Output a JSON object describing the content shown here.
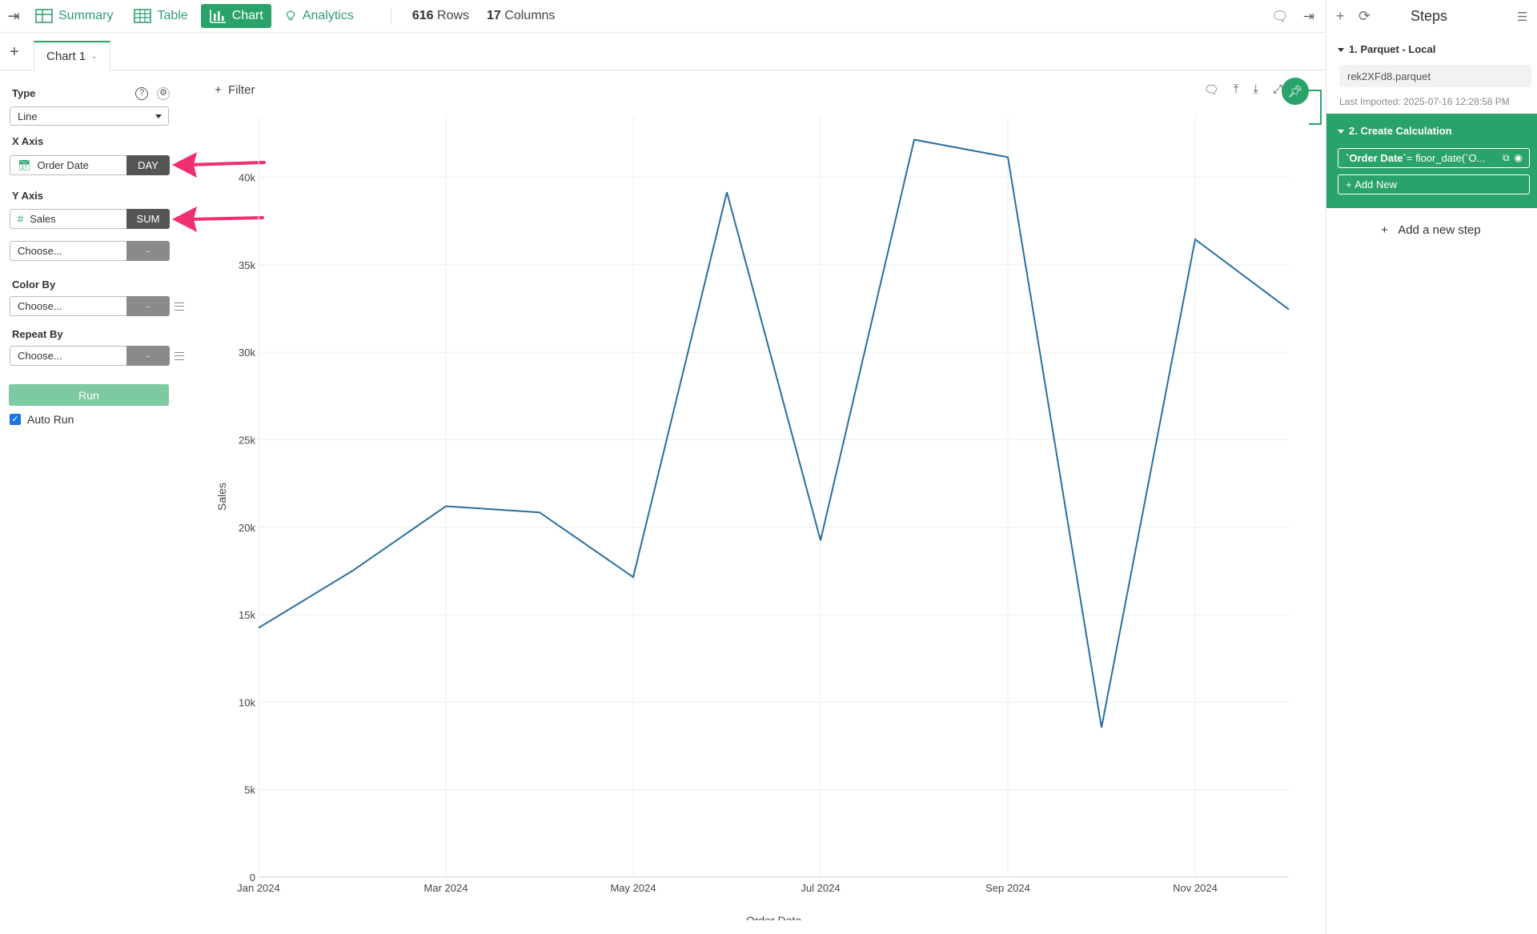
{
  "toolbar": {
    "tabs": [
      {
        "label": "Summary",
        "icon": "summary-grid-icon"
      },
      {
        "label": "Table",
        "icon": "table-icon"
      },
      {
        "label": "Chart",
        "icon": "bar-chart-icon",
        "active": true
      },
      {
        "label": "Analytics",
        "icon": "lightbulb-icon"
      }
    ],
    "rows_count": "616",
    "rows_label": "Rows",
    "cols_count": "17",
    "cols_label": "Columns"
  },
  "chart_tabs": {
    "active": "Chart 1"
  },
  "config": {
    "type_label": "Type",
    "type_value": "Line",
    "x_axis_label": "X Axis",
    "x_field": "Order Date",
    "x_agg": "DAY",
    "y_axis_label": "Y Axis",
    "y_field": "Sales",
    "y_agg": "SUM",
    "y2_placeholder": "Choose...",
    "y2_agg": "-",
    "color_by_label": "Color By",
    "color_by_placeholder": "Choose...",
    "color_by_agg": "-",
    "repeat_by_label": "Repeat By",
    "repeat_by_placeholder": "Choose...",
    "repeat_by_agg": "-",
    "run_label": "Run",
    "auto_run_label": "Auto Run",
    "auto_run_checked": true
  },
  "chart_area": {
    "filter_label": "Filter"
  },
  "chart_data": {
    "type": "line",
    "xlabel": "Order Date",
    "ylabel": "Sales",
    "x": [
      "2024-01",
      "2024-02",
      "2024-03",
      "2024-04",
      "2024-05",
      "2024-06",
      "2024-07",
      "2024-08",
      "2024-09",
      "2024-10",
      "2024-11",
      "2024-12"
    ],
    "x_tick_labels": [
      "Jan 2024",
      "Mar 2024",
      "May 2024",
      "Jul 2024",
      "Sep 2024",
      "Nov 2024"
    ],
    "x_tick_index": [
      0,
      2,
      4,
      6,
      8,
      10
    ],
    "series": [
      {
        "values": [
          14250,
          17500,
          21200,
          20850,
          17150,
          39150,
          19250,
          42150,
          41150,
          8550,
          36450,
          32450
        ],
        "color": "#2a6e9e"
      }
    ],
    "ylim": [
      0,
      43500
    ],
    "y_ticks": [
      0,
      5000,
      10000,
      15000,
      20000,
      25000,
      30000,
      35000,
      40000
    ],
    "y_tick_labels": [
      "0",
      "5k",
      "10k",
      "15k",
      "20k",
      "25k",
      "30k",
      "35k",
      "40k"
    ],
    "grid": true
  },
  "steps": {
    "title": "Steps",
    "step1_title": "1. Parquet - Local",
    "step1_file": "rek2XFd8.parquet",
    "step1_imported": "Last Imported: 2025-07-16 12:28:58 PM",
    "step2_title": "2. Create Calculation",
    "step2_code": "`Order Date`",
    "step2_expr": " = floor_date(`O...",
    "step2_add_new": "Add New",
    "add_step_label": "Add a new step"
  },
  "colors": {
    "accent": "#2aa36b",
    "line": "#2a6e9e",
    "annotation_arrow": "#f0306e"
  }
}
